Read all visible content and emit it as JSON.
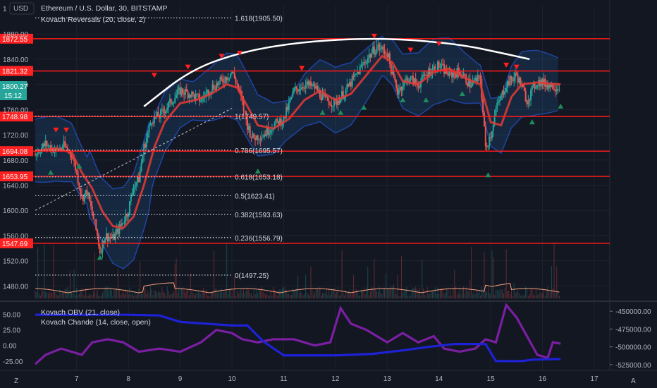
{
  "header": {
    "title": "Ethereum / U.S. Dollar, 30, BITSTAMP",
    "indicator": "Kovach Reversals (20, close, 2)",
    "currency": "USD",
    "currency_prefix": "1"
  },
  "price_badges": {
    "last_price": "1800.27",
    "countdown": "15:12"
  },
  "lower_pane": {
    "obv_label": "Kovach OBV (21, close)",
    "chande_label": "Kovach Chande (14, close, open)"
  },
  "footer": {
    "left_button": "Z",
    "right_button": "A"
  },
  "chart_data": [
    {
      "type": "candlestick",
      "symbol": "Ethereum / U.S. Dollar",
      "interval": "30",
      "exchange": "BITSTAMP",
      "x_ticks": [
        "7",
        "8",
        "9",
        "10",
        "11",
        "12",
        "13",
        "14",
        "15",
        "16",
        "17"
      ],
      "xlim": [
        6.2,
        17.3
      ],
      "ylim": [
        1458,
        1925
      ],
      "y_ticks": [
        1480,
        1520,
        1560,
        1600,
        1640,
        1680,
        1720,
        1760,
        1800,
        1840,
        1880
      ],
      "y_tick_labels": [
        "1480.00",
        "1520.00",
        "1560.00",
        "1600.00",
        "1640.00",
        "1680.00",
        "1720.00",
        "1760.00",
        "1800.00",
        "1840.00",
        "1880.00"
      ],
      "close_path": [
        [
          6.2,
          1690
        ],
        [
          6.4,
          1705
        ],
        [
          6.6,
          1695
        ],
        [
          6.75,
          1702
        ],
        [
          6.9,
          1690
        ],
        [
          7.0,
          1660
        ],
        [
          7.1,
          1620
        ],
        [
          7.2,
          1630
        ],
        [
          7.3,
          1595
        ],
        [
          7.4,
          1560
        ],
        [
          7.45,
          1535
        ],
        [
          7.55,
          1560
        ],
        [
          7.7,
          1555
        ],
        [
          7.85,
          1575
        ],
        [
          8.0,
          1600
        ],
        [
          8.1,
          1640
        ],
        [
          8.2,
          1650
        ],
        [
          8.3,
          1700
        ],
        [
          8.45,
          1745
        ],
        [
          8.6,
          1750
        ],
        [
          8.8,
          1770
        ],
        [
          9.0,
          1790
        ],
        [
          9.2,
          1785
        ],
        [
          9.4,
          1775
        ],
        [
          9.6,
          1795
        ],
        [
          9.8,
          1805
        ],
        [
          10.0,
          1820
        ],
        [
          10.1,
          1800
        ],
        [
          10.2,
          1770
        ],
        [
          10.3,
          1735
        ],
        [
          10.4,
          1715
        ],
        [
          10.6,
          1720
        ],
        [
          10.8,
          1735
        ],
        [
          11.0,
          1745
        ],
        [
          11.2,
          1790
        ],
        [
          11.4,
          1800
        ],
        [
          11.6,
          1795
        ],
        [
          11.8,
          1775
        ],
        [
          12.0,
          1770
        ],
        [
          12.2,
          1790
        ],
        [
          12.4,
          1815
        ],
        [
          12.6,
          1840
        ],
        [
          12.8,
          1860
        ],
        [
          13.0,
          1850
        ],
        [
          13.1,
          1815
        ],
        [
          13.2,
          1790
        ],
        [
          13.4,
          1810
        ],
        [
          13.6,
          1800
        ],
        [
          13.8,
          1820
        ],
        [
          14.0,
          1830
        ],
        [
          14.2,
          1815
        ],
        [
          14.4,
          1820
        ],
        [
          14.6,
          1800
        ],
        [
          14.8,
          1810
        ],
        [
          14.9,
          1700
        ],
        [
          15.0,
          1720
        ],
        [
          15.1,
          1760
        ],
        [
          15.3,
          1800
        ],
        [
          15.5,
          1815
        ],
        [
          15.7,
          1775
        ],
        [
          15.9,
          1805
        ],
        [
          16.1,
          1800
        ],
        [
          16.35,
          1795
        ]
      ],
      "ma_path": [
        [
          6.2,
          1695
        ],
        [
          6.6,
          1698
        ],
        [
          6.9,
          1692
        ],
        [
          7.1,
          1660
        ],
        [
          7.3,
          1635
        ],
        [
          7.5,
          1598
        ],
        [
          7.7,
          1575
        ],
        [
          7.9,
          1572
        ],
        [
          8.1,
          1590
        ],
        [
          8.3,
          1640
        ],
        [
          8.5,
          1700
        ],
        [
          8.7,
          1740
        ],
        [
          9.0,
          1770
        ],
        [
          9.3,
          1775
        ],
        [
          9.6,
          1785
        ],
        [
          9.9,
          1800
        ],
        [
          10.1,
          1795
        ],
        [
          10.3,
          1765
        ],
        [
          10.5,
          1735
        ],
        [
          10.8,
          1730
        ],
        [
          11.1,
          1745
        ],
        [
          11.4,
          1775
        ],
        [
          11.7,
          1790
        ],
        [
          12.0,
          1775
        ],
        [
          12.3,
          1785
        ],
        [
          12.6,
          1815
        ],
        [
          12.9,
          1845
        ],
        [
          13.1,
          1835
        ],
        [
          13.3,
          1805
        ],
        [
          13.6,
          1800
        ],
        [
          13.9,
          1820
        ],
        [
          14.2,
          1825
        ],
        [
          14.5,
          1810
        ],
        [
          14.8,
          1800
        ],
        [
          15.0,
          1740
        ],
        [
          15.2,
          1735
        ],
        [
          15.4,
          1780
        ],
        [
          15.6,
          1800
        ],
        [
          15.9,
          1803
        ],
        [
          16.35,
          1800
        ]
      ],
      "horizontal_levels": [
        1872.55,
        1821.32,
        1748.98,
        1694.08,
        1653.95,
        1547.69
      ],
      "level_labels": [
        "1872.55",
        "1821.32",
        "1748.98",
        "1694.08",
        "1653.95",
        "1547.69"
      ],
      "fibonacci": [
        {
          "label": "1.618(1905.50)",
          "value": 1905.5
        },
        {
          "label": "1(1749.57)",
          "value": 1749.57
        },
        {
          "label": "0.786(1695.57)",
          "value": 1695.57
        },
        {
          "label": "0.618(1653.18)",
          "value": 1653.18
        },
        {
          "label": "0.5(1623.41)",
          "value": 1623.41
        },
        {
          "label": "0.382(1593.63)",
          "value": 1593.63
        },
        {
          "label": "0.236(1556.79)",
          "value": 1556.79
        },
        {
          "label": "0(1497.25)",
          "value": 1497.25
        }
      ],
      "fib_x_range": [
        6.2,
        10.0
      ],
      "sell_signals": [
        [
          6.6,
          1728
        ],
        [
          6.8,
          1728
        ],
        [
          8.5,
          1815
        ],
        [
          9.15,
          1828
        ],
        [
          9.8,
          1845
        ],
        [
          10.15,
          1850
        ],
        [
          11.35,
          1826
        ],
        [
          12.75,
          1877
        ],
        [
          13.45,
          1855
        ],
        [
          14.0,
          1865
        ],
        [
          15.3,
          1831
        ],
        [
          15.5,
          1828
        ]
      ],
      "buy_signals": [
        [
          6.5,
          1660
        ],
        [
          7.05,
          1670
        ],
        [
          7.45,
          1525
        ],
        [
          10.5,
          1662
        ],
        [
          11.75,
          1755
        ],
        [
          12.1,
          1755
        ],
        [
          12.55,
          1763
        ],
        [
          13.3,
          1775
        ],
        [
          13.75,
          1775
        ],
        [
          14.45,
          1785
        ],
        [
          14.95,
          1656
        ],
        [
          15.8,
          1740
        ],
        [
          16.35,
          1765
        ]
      ],
      "rounding_arc": [
        [
          8.3,
          1765
        ],
        [
          9.2,
          1823
        ],
        [
          10.2,
          1852
        ],
        [
          11.3,
          1867
        ],
        [
          12.5,
          1873
        ],
        [
          13.5,
          1871
        ],
        [
          14.5,
          1862
        ],
        [
          15.2,
          1850
        ],
        [
          15.75,
          1840
        ]
      ],
      "trendline": [
        [
          6.2,
          1600
        ],
        [
          10.0,
          1762
        ]
      ]
    },
    {
      "type": "line",
      "title": "",
      "series": [
        {
          "name": "Kovach OBV (21, close)",
          "axis": "right",
          "y_ticks": [
            -450000,
            -475000,
            -500000,
            -525000
          ],
          "y_tick_labels": [
            "-450000.00",
            "-475000.00",
            "-500000.00",
            "-525000.00"
          ],
          "points": [
            [
              6.2,
              -455000
            ],
            [
              7.0,
              -455000
            ],
            [
              8.0,
              -455000
            ],
            [
              8.6,
              -456000
            ],
            [
              9.0,
              -465000
            ],
            [
              9.6,
              -468000
            ],
            [
              10.0,
              -470000
            ],
            [
              10.3,
              -470000
            ],
            [
              10.6,
              -492000
            ],
            [
              11.0,
              -512000
            ],
            [
              12.0,
              -512000
            ],
            [
              12.7,
              -510000
            ],
            [
              13.3,
              -505000
            ],
            [
              13.8,
              -500000
            ],
            [
              14.3,
              -496000
            ],
            [
              14.9,
              -496000
            ],
            [
              15.1,
              -520000
            ],
            [
              15.6,
              -520000
            ],
            [
              15.8,
              -518000
            ],
            [
              16.35,
              -517000
            ]
          ]
        },
        {
          "name": "Kovach Chande (14, close, open)",
          "axis": "left",
          "y_ticks": [
            50,
            25,
            0,
            -25
          ],
          "y_tick_labels": [
            "50.00",
            "25.00",
            "0.00",
            "-25.00"
          ],
          "points": [
            [
              6.2,
              -30
            ],
            [
              6.4,
              -15
            ],
            [
              6.7,
              -5
            ],
            [
              6.9,
              -10
            ],
            [
              7.1,
              -15
            ],
            [
              7.3,
              5
            ],
            [
              7.6,
              10
            ],
            [
              7.9,
              5
            ],
            [
              8.2,
              -10
            ],
            [
              8.6,
              -5
            ],
            [
              9.0,
              -10
            ],
            [
              9.4,
              5
            ],
            [
              9.7,
              25
            ],
            [
              10.0,
              20
            ],
            [
              10.2,
              10
            ],
            [
              10.5,
              5
            ],
            [
              10.8,
              10
            ],
            [
              11.2,
              10
            ],
            [
              11.6,
              0
            ],
            [
              11.9,
              5
            ],
            [
              12.1,
              60
            ],
            [
              12.3,
              35
            ],
            [
              12.6,
              25
            ],
            [
              12.8,
              15
            ],
            [
              13.0,
              5
            ],
            [
              13.3,
              20
            ],
            [
              13.6,
              5
            ],
            [
              13.9,
              15
            ],
            [
              14.1,
              -5
            ],
            [
              14.4,
              -10
            ],
            [
              14.7,
              -5
            ],
            [
              14.9,
              10
            ],
            [
              15.1,
              5
            ],
            [
              15.3,
              65
            ],
            [
              15.5,
              45
            ],
            [
              15.7,
              15
            ],
            [
              15.9,
              -15
            ],
            [
              16.1,
              -20
            ],
            [
              16.2,
              5
            ],
            [
              16.35,
              3
            ]
          ]
        }
      ],
      "left_ylim": [
        -40,
        70
      ],
      "right_ylim": [
        -533000,
        -437000
      ]
    }
  ]
}
